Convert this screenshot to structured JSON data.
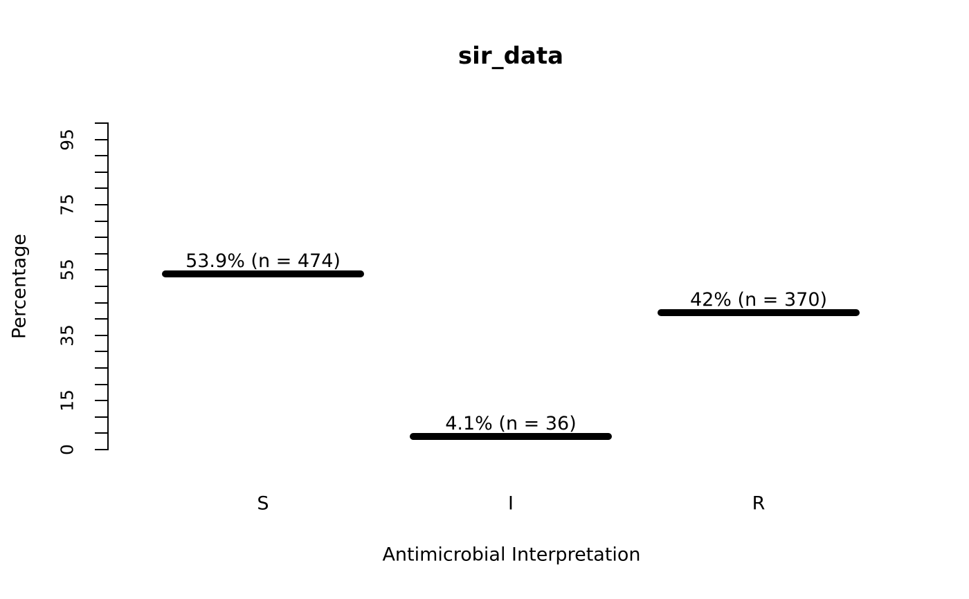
{
  "chart_data": {
    "type": "bar",
    "title": "sir_data",
    "xlabel": "Antimicrobial Interpretation",
    "ylabel": "Percentage",
    "categories": [
      "S",
      "I",
      "R"
    ],
    "values": [
      53.9,
      4.1,
      42
    ],
    "counts": [
      474,
      36,
      370
    ],
    "bar_labels": [
      "53.9% (n = 474)",
      "4.1% (n = 36)",
      "42% (n = 370)"
    ],
    "ylim": [
      0,
      100
    ],
    "y_tick_step": 5,
    "y_tick_labels": [
      "0",
      "15",
      "35",
      "55",
      "75",
      "95"
    ],
    "y_tick_label_values": [
      0,
      15,
      35,
      55,
      75,
      95
    ],
    "grid": false,
    "legend_position": "none",
    "bar_color": "#000000",
    "text_color": "#000000",
    "background_color": "#ffffff"
  }
}
